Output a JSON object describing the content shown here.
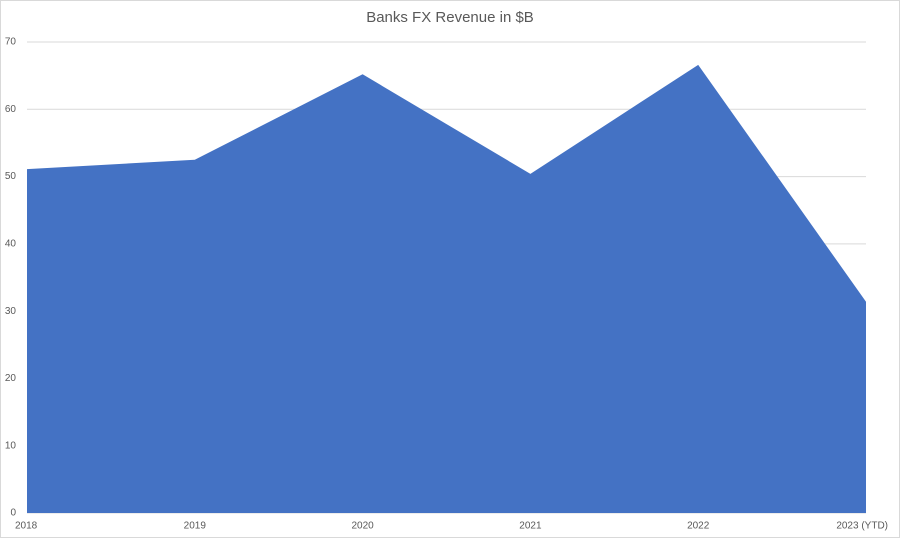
{
  "chart_data": {
    "type": "area",
    "title": "Banks FX Revenue in $B",
    "categories": [
      "2018",
      "2019",
      "2020",
      "2021",
      "2022",
      "2023 (YTD)"
    ],
    "values": [
      51.1,
      52.5,
      65.2,
      50.4,
      66.6,
      31.4
    ],
    "color": "#4472c4",
    "ylim": [
      0,
      70
    ],
    "yticks": [
      0,
      10,
      20,
      30,
      40,
      50,
      60,
      70
    ],
    "grid": true
  }
}
